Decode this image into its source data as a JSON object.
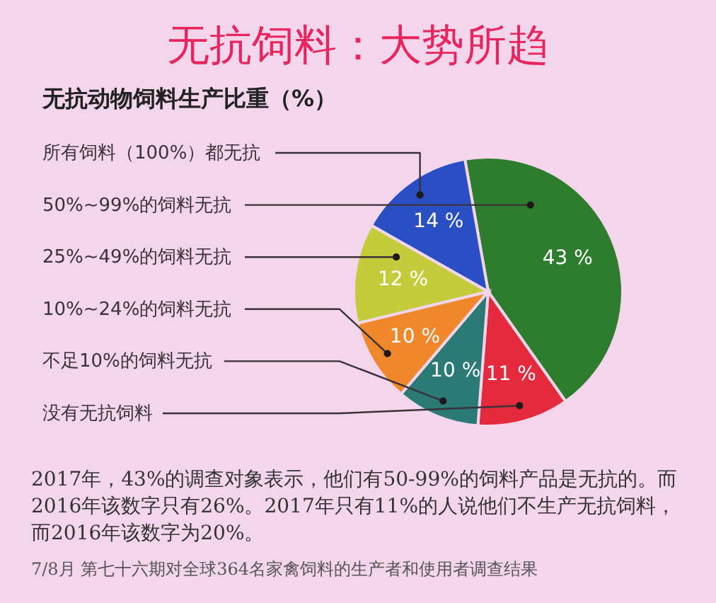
{
  "chart_data": {
    "type": "pie",
    "title": "无抗饲料：大势所趋",
    "subtitle": "无抗动物饲料生产比重（%）",
    "categories": [
      "50%~99%的饲料无抗",
      "没有无抗饲料",
      "不足10%的饲料无抗",
      "10%~24%的饲料无抗",
      "25%~49%的饲料无抗",
      "所有饲料（100%）都无抗"
    ],
    "values": [
      43,
      11,
      10,
      10,
      12,
      14
    ],
    "colors": [
      "#2e7d2e",
      "#e42a3c",
      "#2b7a76",
      "#f0872a",
      "#c4cc3c",
      "#2a4fc4"
    ],
    "value_labels": [
      "43 %",
      "11 %",
      "10 %",
      "10 %",
      "12 %",
      "14 %"
    ],
    "annotations": [
      "2017年，43%的调查对象表示，他们有50-99%的饲料产品是无抗的。而2016年该数字只有26%。2017年只有11%的人说他们不生产无抗饲料，而2016年该数字为20%。",
      "7/8月 第七十六期对全球364名家禽饲料的生产者和使用者调查结果"
    ]
  }
}
